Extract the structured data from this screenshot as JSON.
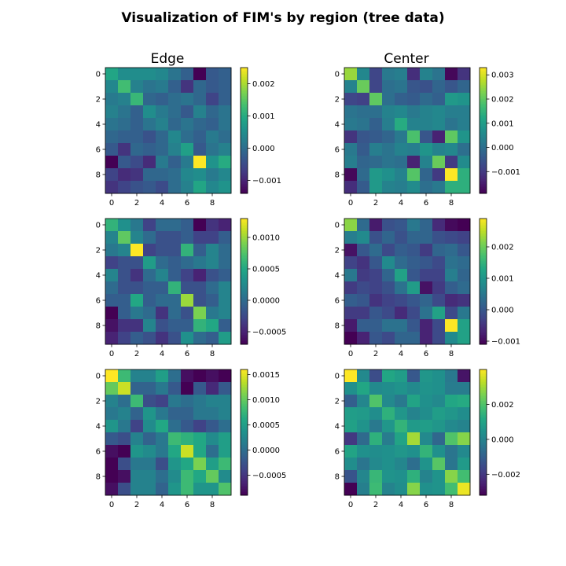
{
  "title": "Visualization of FIM's by region (tree data)",
  "columns": [
    "Edge",
    "Center"
  ],
  "chart_data": [
    {
      "type": "heatmap",
      "title": "Edge",
      "colormap": "viridis",
      "x_ticks": [
        0,
        2,
        4,
        6,
        8
      ],
      "y_ticks": [
        0,
        2,
        4,
        6,
        8
      ],
      "vmin": -0.0014,
      "vmax": 0.0025,
      "colorbar_ticks": [
        -0.001,
        0.0,
        0.001,
        0.002
      ],
      "colorbar_tick_labels": [
        "−0.001",
        "0.000",
        "0.001",
        "0.002"
      ],
      "values": [
        [
          0.0009,
          0.0005,
          0.0005,
          0.0005,
          0.0004,
          0.0001,
          -0.0002,
          -0.0014,
          -0.0003,
          -0.0002
        ],
        [
          0.0004,
          0.0013,
          0.0003,
          0.0001,
          0.0002,
          -0.0002,
          -0.0008,
          -0.0001,
          -0.0003,
          -0.0002
        ],
        [
          0.0002,
          0.0003,
          0.0012,
          -0.0001,
          -0.0002,
          0.0,
          0.0001,
          -0.0001,
          -0.0006,
          -0.0002
        ],
        [
          0.0003,
          0.0001,
          -0.0002,
          0.0005,
          0.0002,
          0.0,
          -0.0003,
          0.0003,
          -0.0001,
          0.0001
        ],
        [
          0.0001,
          0.0,
          -0.0002,
          0.0001,
          0.0003,
          -0.0001,
          0.0001,
          -0.0001,
          -0.0002,
          0.0001
        ],
        [
          -0.0001,
          -0.0002,
          -0.0002,
          -0.0004,
          -0.0001,
          0.0004,
          0.0,
          -0.0002,
          0.0002,
          0.0
        ],
        [
          -0.0003,
          -0.0008,
          -0.0001,
          -0.0002,
          -0.0001,
          0.0003,
          0.0008,
          -0.0003,
          0.0001,
          0.0003
        ],
        [
          -0.0014,
          -0.0003,
          -0.0005,
          -0.0009,
          0.0002,
          -0.0002,
          0.0002,
          0.0025,
          0.0006,
          0.001
        ],
        [
          -0.0006,
          -0.0009,
          -0.0008,
          -0.0001,
          -0.0001,
          0.0,
          0.0004,
          0.0005,
          0.0002,
          0.0004
        ],
        [
          -0.0008,
          -0.0006,
          -0.0004,
          -0.0003,
          -0.0005,
          0.0,
          0.0003,
          0.0009,
          0.0004,
          0.0006
        ]
      ]
    },
    {
      "type": "heatmap",
      "title": "Center",
      "colormap": "viridis",
      "x_ticks": [
        0,
        2,
        4,
        6,
        8
      ],
      "y_ticks": [
        0,
        2,
        4,
        6,
        8
      ],
      "vmin": -0.0019,
      "vmax": 0.0033,
      "colorbar_ticks": [
        -0.001,
        0.0,
        0.001,
        0.002,
        0.003
      ],
      "colorbar_tick_labels": [
        "−0.001",
        "0.000",
        "0.001",
        "0.002",
        "0.003"
      ],
      "values": [
        [
          0.0025,
          0.0005,
          -0.0008,
          0.0002,
          0.0003,
          -0.0012,
          0.0004,
          0.0001,
          -0.0018,
          -0.0011
        ],
        [
          0.0004,
          0.0021,
          -0.0008,
          0.0,
          0.0001,
          -0.0005,
          -0.0006,
          -0.0002,
          -0.0005,
          -0.0002
        ],
        [
          -0.0008,
          -0.0009,
          0.002,
          0.0,
          -0.0003,
          -0.0004,
          -0.0001,
          -0.0003,
          0.0009,
          0.0008
        ],
        [
          0.0001,
          0.0,
          0.0,
          0.0004,
          0.0005,
          0.0002,
          0.0004,
          0.0005,
          0.0003,
          0.0003
        ],
        [
          0.0002,
          0.0001,
          -0.0003,
          0.0003,
          0.0013,
          0.0004,
          0.0004,
          0.0005,
          0.0001,
          0.0003
        ],
        [
          -0.0011,
          -0.0005,
          -0.0004,
          -0.0002,
          0.0002,
          0.0018,
          -0.0005,
          -0.0014,
          0.002,
          0.0008
        ],
        [
          0.0002,
          -0.0004,
          0.0003,
          0.0001,
          0.0004,
          0.0003,
          0.0008,
          0.0004,
          0.0005,
          0.0
        ],
        [
          0.0003,
          -0.0002,
          -0.0001,
          0.0001,
          0.0,
          -0.0014,
          0.0004,
          0.0021,
          -0.001,
          0.0006
        ],
        [
          -0.0018,
          -0.0001,
          0.0009,
          0.0007,
          0.0004,
          0.0019,
          -0.0002,
          -0.001,
          0.0033,
          0.0014
        ],
        [
          -0.0012,
          -0.0004,
          0.0009,
          0.0004,
          0.0003,
          0.0006,
          0.0,
          0.0002,
          0.0014,
          0.0014
        ]
      ]
    },
    {
      "type": "heatmap",
      "title": "",
      "colormap": "viridis",
      "x_ticks": [
        0,
        2,
        4,
        6,
        8
      ],
      "y_ticks": [
        0,
        2,
        4,
        6,
        8
      ],
      "vmin": -0.0007,
      "vmax": 0.0013,
      "colorbar_ticks": [
        -0.0005,
        0.0,
        0.0005,
        0.001
      ],
      "colorbar_tick_labels": [
        "−0.0005",
        "0.0000",
        "0.0005",
        "0.0010"
      ],
      "values": [
        [
          0.0006,
          0.0003,
          0.0001,
          -0.0003,
          0.0,
          0.0,
          -0.0001,
          -0.0007,
          -0.0004,
          -0.0005
        ],
        [
          0.0002,
          0.0008,
          0.0002,
          0.0,
          -0.0002,
          -0.0002,
          -0.0001,
          -0.0003,
          -0.0003,
          -0.0001
        ],
        [
          0.0001,
          0.0002,
          0.0013,
          -0.0003,
          -0.0002,
          -0.0002,
          0.0006,
          -0.0001,
          0.0002,
          0.0
        ],
        [
          -0.0003,
          -0.0002,
          -0.0002,
          0.0004,
          0.0,
          -0.0001,
          0.0,
          0.0001,
          0.0002,
          0.0
        ],
        [
          0.0002,
          -0.0002,
          -0.0004,
          0.0,
          0.0002,
          -0.0001,
          -0.0003,
          -0.0005,
          -0.0002,
          -0.0001
        ],
        [
          0.0,
          -0.0002,
          -0.0002,
          -0.0001,
          -0.0001,
          0.0006,
          -0.0002,
          -0.0002,
          0.0,
          0.0002
        ],
        [
          -0.0001,
          -0.0001,
          0.0005,
          -0.0001,
          0.0,
          0.0,
          0.001,
          -0.0002,
          -0.0001,
          0.0002
        ],
        [
          -0.0007,
          -0.0001,
          0.0001,
          0.0,
          -0.0004,
          0.0,
          -0.0002,
          0.0009,
          0.0001,
          0.0002
        ],
        [
          -0.0006,
          -0.0004,
          -0.0004,
          0.0002,
          -0.0002,
          -0.0001,
          -0.0001,
          0.0006,
          0.0005,
          -0.0001
        ],
        [
          -0.0005,
          -0.0003,
          -0.0001,
          -0.0002,
          -0.0004,
          -0.0002,
          0.0003,
          0.0,
          -0.0001,
          0.0004
        ]
      ]
    },
    {
      "type": "heatmap",
      "title": "",
      "colormap": "viridis",
      "x_ticks": [
        0,
        2,
        4,
        6,
        8
      ],
      "y_ticks": [
        0,
        2,
        4,
        6,
        8
      ],
      "vmin": -0.0011,
      "vmax": 0.0029,
      "colorbar_ticks": [
        -0.001,
        0.0,
        0.001,
        0.002
      ],
      "colorbar_tick_labels": [
        "−0.001",
        "0.000",
        "0.001",
        "0.002"
      ],
      "values": [
        [
          0.0022,
          0.0003,
          -0.0008,
          -0.0001,
          0.0,
          0.0005,
          0.0002,
          -0.0006,
          -0.001,
          -0.0011
        ],
        [
          0.0006,
          0.0008,
          -0.0001,
          0.0002,
          -0.0001,
          0.0002,
          0.0002,
          -0.0001,
          -0.0002,
          -0.0003
        ],
        [
          -0.0009,
          0.0,
          0.0003,
          -0.0002,
          0.0001,
          0.0,
          -0.0004,
          0.0002,
          0.0003,
          0.0
        ],
        [
          -0.0003,
          -0.0005,
          0.0,
          0.0008,
          0.0003,
          0.0001,
          0.0,
          -0.0002,
          0.0004,
          0.0003
        ],
        [
          0.0005,
          -0.0004,
          -0.0003,
          0.0002,
          0.0012,
          0.0,
          -0.0003,
          -0.0003,
          0.0006,
          0.0002
        ],
        [
          -0.0004,
          -0.0002,
          -0.0003,
          -0.0001,
          0.0004,
          0.0011,
          -0.0009,
          -0.0004,
          0.0001,
          0.0003
        ],
        [
          0.0001,
          0.0,
          -0.0005,
          -0.0003,
          -0.0002,
          0.0,
          0.0002,
          -0.0002,
          -0.0006,
          -0.0005
        ],
        [
          -0.0004,
          -0.0004,
          0.0,
          -0.0002,
          -0.0006,
          -0.0002,
          0.0004,
          0.0012,
          -0.0002,
          0.0005
        ],
        [
          -0.0008,
          0.0001,
          0.0001,
          0.0004,
          0.0004,
          0.0,
          -0.0007,
          -0.0002,
          0.0029,
          0.0012
        ],
        [
          -0.0011,
          -0.0007,
          0.0,
          -0.0002,
          0.0002,
          0.0002,
          -0.0007,
          -0.0002,
          0.0008,
          0.0012
        ]
      ]
    },
    {
      "type": "heatmap",
      "title": "",
      "colormap": "viridis",
      "x_ticks": [
        0,
        2,
        4,
        6,
        8
      ],
      "y_ticks": [
        0,
        2,
        4,
        6,
        8
      ],
      "vmin": -0.0009,
      "vmax": 0.0016,
      "colorbar_ticks": [
        -0.0005,
        0.0,
        0.0005,
        0.001,
        0.0015
      ],
      "colorbar_tick_labels": [
        "−0.0005",
        "0.0000",
        "0.0005",
        "0.0010",
        "0.0015"
      ],
      "values": [
        [
          0.0016,
          0.0008,
          0.0002,
          0.0002,
          0.0005,
          0.0,
          -0.0008,
          -0.0009,
          -0.0008,
          -0.0009
        ],
        [
          0.001,
          0.0014,
          -0.0001,
          -0.0001,
          0.0001,
          -0.0002,
          -0.0009,
          -0.0002,
          -0.0006,
          -0.0002
        ],
        [
          0.0002,
          0.0,
          0.0008,
          -0.0003,
          -0.0004,
          0.0001,
          0.0,
          0.0001,
          0.0002,
          0.0002
        ],
        [
          0.0001,
          0.0002,
          -0.0001,
          0.0004,
          0.0001,
          -0.0001,
          -0.0001,
          0.0001,
          0.0001,
          0.0002
        ],
        [
          0.0004,
          0.0001,
          -0.0004,
          0.0003,
          0.0006,
          0.0,
          -0.0002,
          -0.0004,
          -0.0002,
          0.0
        ],
        [
          -0.0002,
          -0.0003,
          0.0002,
          -0.0001,
          0.0001,
          0.0008,
          0.0007,
          0.0006,
          0.0003,
          0.0005
        ],
        [
          -0.0008,
          -0.0009,
          0.0004,
          0.0003,
          0.0001,
          0.0006,
          0.0014,
          0.0006,
          0.0,
          0.0005
        ],
        [
          -0.0009,
          -0.0003,
          0.0001,
          0.0001,
          -0.0003,
          0.0004,
          0.0006,
          0.0011,
          0.0005,
          0.0008
        ],
        [
          -0.0009,
          -0.0008,
          0.0002,
          0.0002,
          0.0,
          0.0003,
          0.0008,
          0.0006,
          0.001,
          0.0003
        ],
        [
          -0.0008,
          -0.0003,
          0.0002,
          0.0002,
          -0.0001,
          0.0004,
          0.0008,
          0.0004,
          0.0004,
          0.0009
        ]
      ]
    },
    {
      "type": "heatmap",
      "title": "",
      "colormap": "viridis",
      "x_ticks": [
        0,
        2,
        4,
        6,
        8
      ],
      "y_ticks": [
        0,
        2,
        4,
        6,
        8
      ],
      "vmin": -0.0032,
      "vmax": 0.004,
      "colorbar_ticks": [
        -0.002,
        0.0,
        0.002
      ],
      "colorbar_tick_labels": [
        "−0.002",
        "0.000",
        "0.002"
      ],
      "values": [
        [
          0.004,
          0.0002,
          -0.0015,
          0.0011,
          0.0008,
          -0.0012,
          0.0006,
          0.0004,
          -0.0003,
          -0.0028
        ],
        [
          0.0004,
          0.0011,
          0.0002,
          0.0003,
          0.0005,
          0.0002,
          0.0005,
          0.0004,
          -0.0002,
          -0.0002
        ],
        [
          -0.001,
          0.0001,
          0.002,
          0.0002,
          -0.0003,
          0.001,
          0.0004,
          0.0002,
          0.0011,
          0.0012
        ],
        [
          0.0008,
          0.0007,
          0.0003,
          0.0014,
          0.0006,
          0.0,
          0.0003,
          0.0008,
          0.0006,
          0.0003
        ],
        [
          0.0009,
          0.0005,
          -0.0003,
          0.0006,
          0.0015,
          0.0007,
          0.0008,
          0.0006,
          0.0002,
          0.0
        ],
        [
          -0.002,
          -0.0007,
          0.0014,
          -0.0002,
          0.001,
          0.003,
          0.0002,
          -0.0008,
          0.002,
          0.0027
        ],
        [
          0.001,
          0.0004,
          0.0003,
          0.0004,
          0.0006,
          0.0004,
          0.0015,
          0.0004,
          -0.0004,
          0.0002
        ],
        [
          0.0003,
          -0.0004,
          0.0002,
          0.0004,
          0.0001,
          -0.0006,
          0.0005,
          0.0021,
          -0.0004,
          0.0007
        ],
        [
          -0.0013,
          0.0001,
          0.0016,
          0.0005,
          0.0004,
          0.0014,
          0.0,
          0.0005,
          0.0027,
          0.0018
        ],
        [
          -0.0032,
          -0.0001,
          0.0017,
          0.0,
          0.0003,
          0.0027,
          0.0004,
          0.0005,
          0.0018,
          0.0038
        ]
      ]
    }
  ]
}
